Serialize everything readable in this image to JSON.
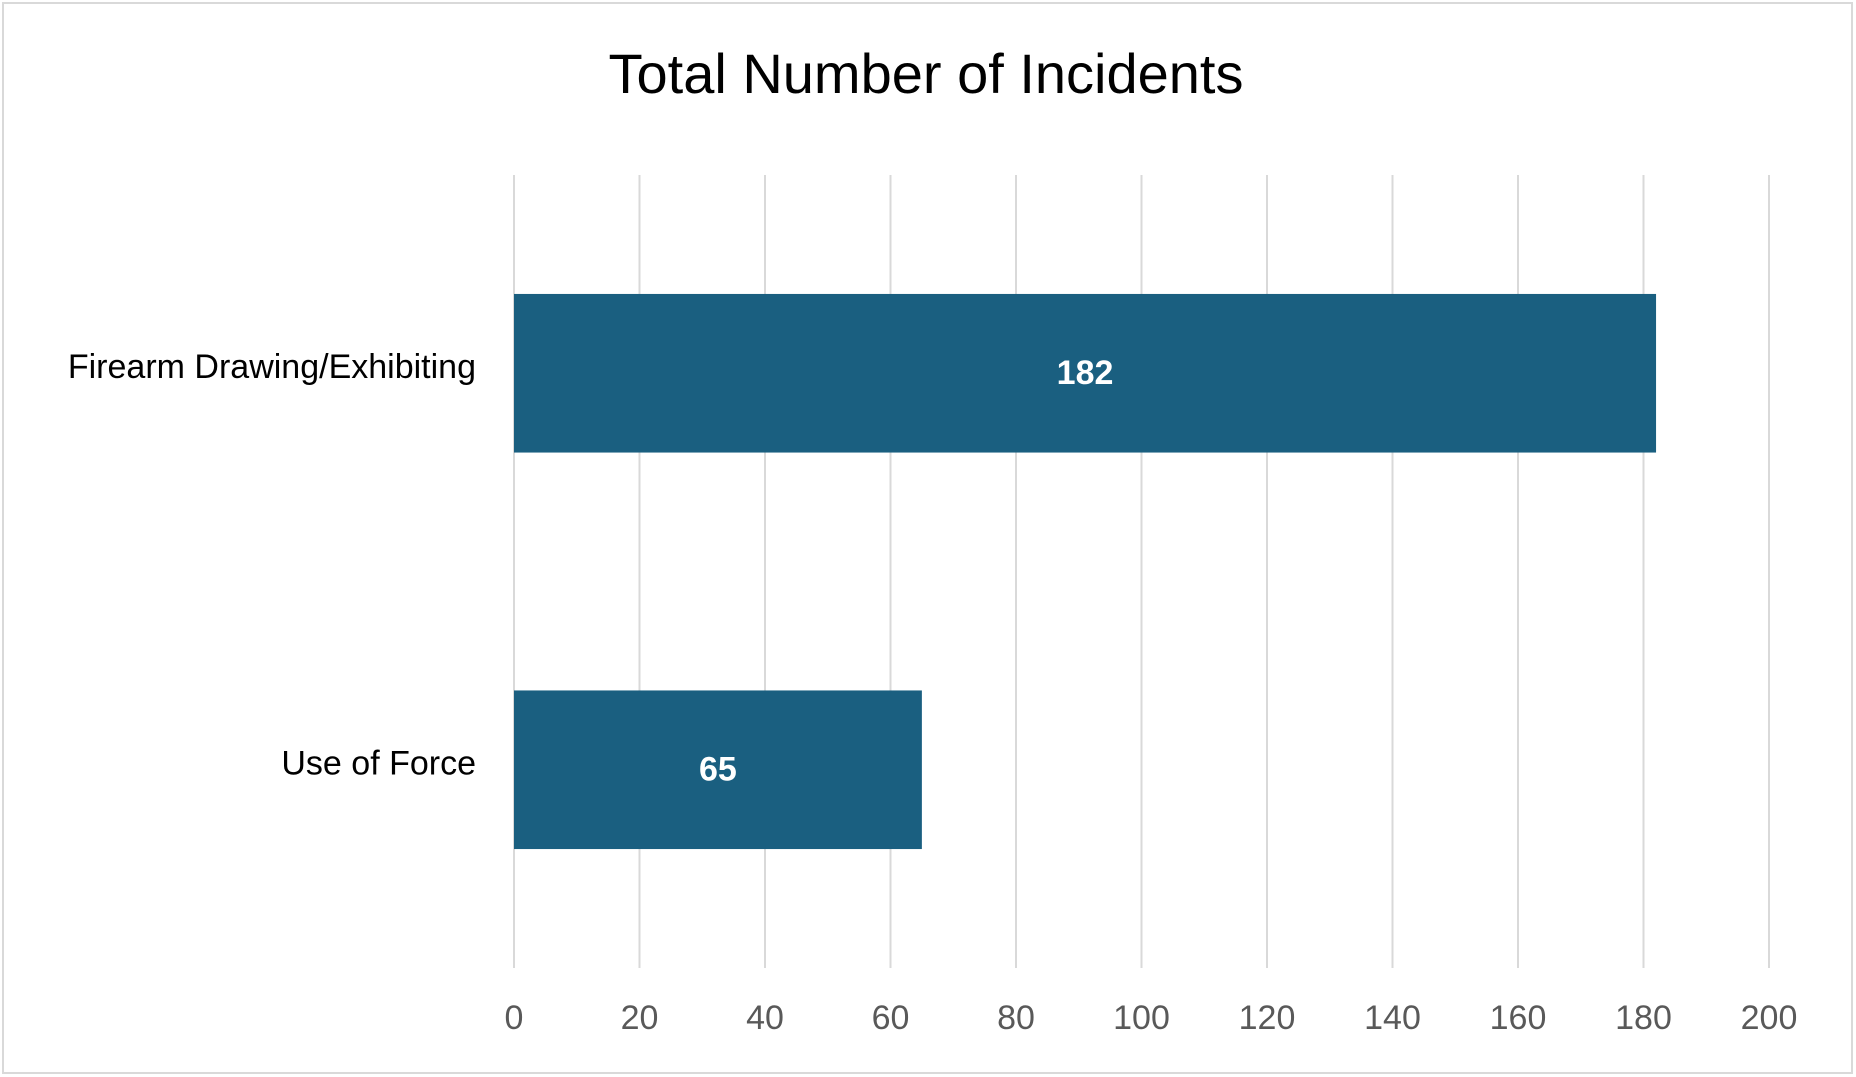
{
  "chart_data": {
    "type": "bar",
    "orientation": "horizontal",
    "title": "Total Number of Incidents",
    "categories": [
      "Firearm Drawing/Exhibiting",
      "Use of Force"
    ],
    "values": [
      182,
      65
    ],
    "color": "#1a5f80",
    "xlim": [
      0,
      200
    ],
    "xticks": [
      0,
      20,
      40,
      60,
      80,
      100,
      120,
      140,
      160,
      180,
      200
    ],
    "grid": true,
    "data_labels": true
  }
}
